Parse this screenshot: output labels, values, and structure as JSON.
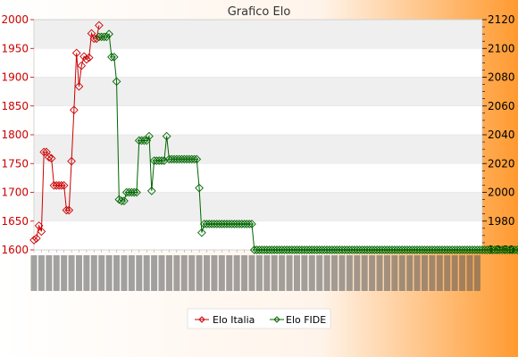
{
  "chart_data": {
    "type": "line",
    "title": "Grafico Elo",
    "y_left": {
      "ticks": [
        1600,
        1650,
        1700,
        1750,
        1800,
        1850,
        1900,
        1950,
        2000
      ],
      "ylim": [
        1600,
        2000
      ]
    },
    "y_right": {
      "ticks": [
        1960,
        1980,
        2000,
        2020,
        2040,
        2060,
        2080,
        2100,
        2120
      ],
      "ylim": [
        1960,
        2120
      ]
    },
    "grid": "horizontal bands",
    "legend_placement": "bottom",
    "x_label_note": "rotated date labels, unreadable",
    "series": [
      {
        "name": "Elo Italia",
        "axis": "left",
        "color": "#cc0000",
        "values": [
          1617,
          1620,
          1642,
          1632,
          1770,
          1770,
          1761,
          1759,
          1712,
          1712,
          1712,
          1712,
          1712,
          1669,
          1669,
          1754,
          1843,
          1942,
          1884,
          1920,
          1936,
          1931,
          1934,
          1976,
          1967,
          1967,
          1990
        ]
      },
      {
        "name": "Elo FIDE",
        "axis": "right",
        "color": "#006600",
        "start_index": 26,
        "values": [
          2108,
          2108,
          2108,
          2108,
          2110,
          2094,
          2094,
          2077,
          1995,
          1994,
          1994,
          2000,
          2000,
          2000,
          2000,
          2000,
          2036,
          2036,
          2036,
          2036,
          2039,
          2001,
          2022,
          2022,
          2022,
          2022,
          2022,
          2039,
          2023,
          2023,
          2023,
          2023,
          2023,
          2023,
          2023,
          2023,
          2023,
          2023,
          2023,
          2023,
          2003,
          1972,
          1978,
          1978,
          1978,
          1978,
          1978,
          1978,
          1978,
          1978,
          1978,
          1978,
          1978,
          1978,
          1978,
          1978,
          1978,
          1978,
          1978,
          1978,
          1978,
          1978,
          1960,
          1960,
          1960,
          1960,
          1960,
          1960,
          1960,
          1960,
          1960,
          1960,
          1960,
          1960,
          1960,
          1960,
          1960,
          1960,
          1960,
          1960,
          1960,
          1960,
          1960,
          1960,
          1960,
          1960,
          1960,
          1960,
          1960,
          1960,
          1960,
          1960,
          1960,
          1960,
          1960,
          1960,
          1960,
          1960,
          1960,
          1960,
          1960,
          1960,
          1960,
          1960,
          1960,
          1960,
          1960,
          1960,
          1960,
          1960,
          1960,
          1960,
          1960,
          1960,
          1960,
          1960,
          1960,
          1960,
          1960,
          1960,
          1960,
          1960,
          1960,
          1960,
          1960,
          1960,
          1960,
          1960,
          1960,
          1960,
          1960,
          1960,
          1960,
          1960,
          1960,
          1960,
          1960,
          1960,
          1960,
          1960,
          1960,
          1960,
          1960,
          1960,
          1960,
          1960,
          1960,
          1960,
          1960,
          1960,
          1960,
          1960,
          1960,
          1960,
          1960,
          1960,
          1960,
          1960,
          1960,
          1960,
          1960,
          1960,
          1960,
          1960,
          1960,
          1960,
          1960,
          1960,
          1960,
          1960,
          1960,
          1960,
          1960,
          1960,
          1960,
          1960,
          1960,
          1960,
          1960,
          1960,
          1960,
          1960,
          1960,
          1960,
          1960,
          1960,
          1960,
          1960,
          1960,
          1960,
          1960,
          1960,
          1960,
          1960,
          1960,
          1960,
          1960,
          1960,
          1960,
          1960,
          1960,
          1960,
          1960,
          1960,
          1960,
          1960,
          1960,
          1960,
          1960,
          1960,
          1960,
          1960,
          1960,
          1960,
          1960,
          1960,
          1960,
          1960,
          1960,
          1960,
          1960,
          1960,
          1960,
          1960,
          1960,
          1960,
          1960,
          1960,
          1960,
          1960,
          1960,
          1960,
          1960,
          1960,
          1960,
          1960,
          1960,
          1960,
          1960,
          1960,
          1978,
          1978,
          1978,
          1978,
          1978,
          1978,
          1978,
          1978,
          1978,
          1978,
          1978,
          1978,
          1978,
          1978,
          1978,
          1978,
          1978,
          1978,
          1978,
          1978,
          1978,
          1978,
          1978,
          1978,
          1978,
          1978,
          1978,
          1978,
          1978,
          1978
        ]
      }
    ]
  },
  "colors": {
    "background_left": "#ffffff",
    "background_right": "#ff9933",
    "plot_band": "#efefef",
    "elo_italia": "#cc0000",
    "elo_fide": "#006600"
  }
}
